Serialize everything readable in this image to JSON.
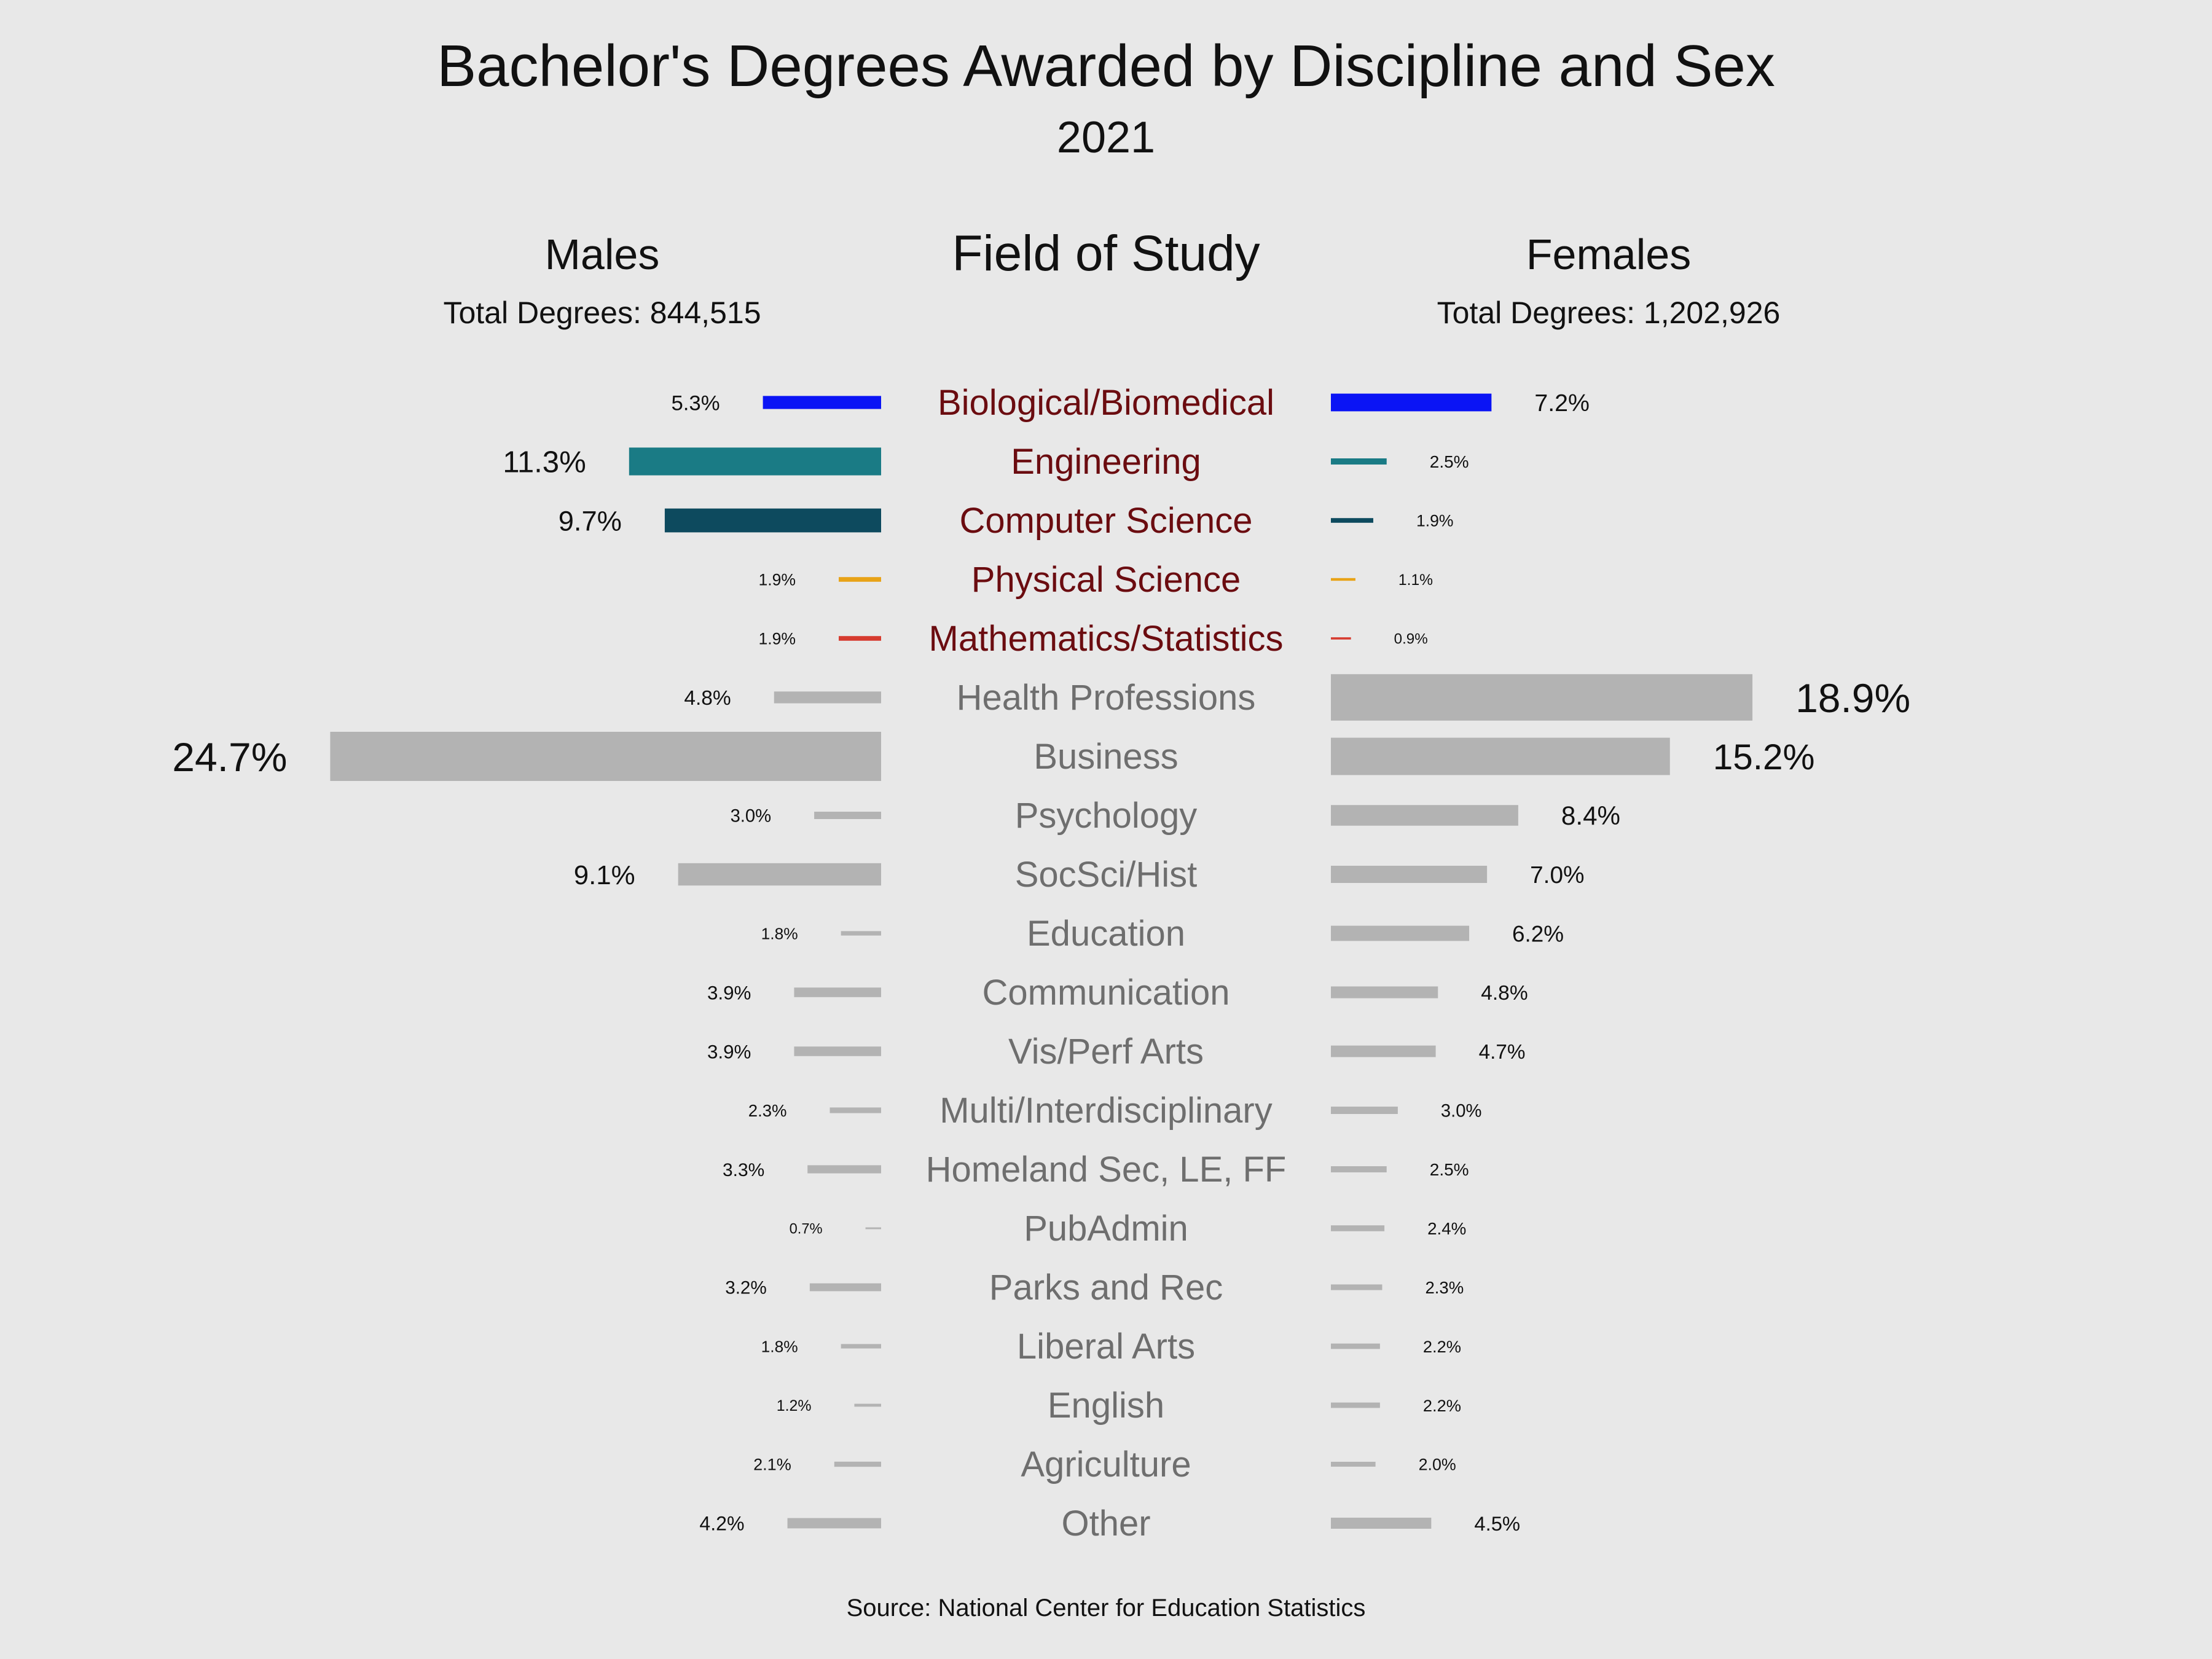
{
  "title": "Bachelor's Degrees Awarded by Discipline and Sex",
  "subtitle": "2021",
  "headers": {
    "males": "Males",
    "field": "Field of Study",
    "females": "Females"
  },
  "totals": {
    "males": "Total Degrees: 844,515",
    "females": "Total Degrees: 1,202,926"
  },
  "source": "Source: National Center for Education Statistics",
  "colors": {
    "background": "#e8e8e8",
    "highlight_label": "#6b0c10",
    "gray_label": "#6e6e6e",
    "gray_bar": "#b3b3b3",
    "value_text": "#111111"
  },
  "chart_data": {
    "type": "bar",
    "orientation": "horizontal-diverging",
    "series": [
      {
        "name": "Males",
        "values": [
          5.3,
          11.3,
          9.7,
          1.9,
          1.9,
          4.8,
          24.7,
          3.0,
          9.1,
          1.8,
          3.9,
          3.9,
          2.3,
          3.3,
          0.7,
          3.2,
          1.8,
          1.2,
          2.1,
          4.2
        ]
      },
      {
        "name": "Females",
        "values": [
          7.2,
          2.5,
          1.9,
          1.1,
          0.9,
          18.9,
          15.2,
          8.4,
          7.0,
          6.2,
          4.8,
          4.7,
          3.0,
          2.5,
          2.4,
          2.3,
          2.2,
          2.2,
          2.0,
          4.5
        ]
      }
    ],
    "categories": [
      "Biological/Biomedical",
      "Engineering",
      "Computer Science",
      "Physical Science",
      "Mathematics/Statistics",
      "Health Professions",
      "Business",
      "Psychology",
      "SocSci/Hist",
      "Education",
      "Communication",
      "Vis/Perf Arts",
      "Multi/Interdisciplinary",
      "Homeland Sec, LE, FF",
      "PubAdmin",
      "Parks and Rec",
      "Liberal Arts",
      "English",
      "Agriculture",
      "Other"
    ],
    "male_labels": [
      "5.3%",
      "11.3%",
      "9.7%",
      "1.9%",
      "1.9%",
      "4.8%",
      "24.7%",
      "3.0%",
      "9.1%",
      "1.8%",
      "3.9%",
      "3.9%",
      "2.3%",
      "3.3%",
      "0.7%",
      "3.2%",
      "1.8%",
      "1.2%",
      "2.1%",
      "4.2%"
    ],
    "female_labels": [
      "7.2%",
      "2.5%",
      "1.9%",
      "1.1%",
      "0.9%",
      "18.9%",
      "15.2%",
      "8.4%",
      "7.0%",
      "6.2%",
      "4.8%",
      "4.7%",
      "3.0%",
      "2.5%",
      "2.4%",
      "2.3%",
      "2.2%",
      "2.2%",
      "2.0%",
      "4.5%"
    ],
    "bar_colors": [
      "#0a14f5",
      "#1a7b85",
      "#0d4a5e",
      "#e8a317",
      "#d63b2f",
      "#b3b3b3",
      "#b3b3b3",
      "#b3b3b3",
      "#b3b3b3",
      "#b3b3b3",
      "#b3b3b3",
      "#b3b3b3",
      "#b3b3b3",
      "#b3b3b3",
      "#b3b3b3",
      "#b3b3b3",
      "#b3b3b3",
      "#b3b3b3",
      "#b3b3b3",
      "#b3b3b3"
    ],
    "highlighted_fields": [
      "Biological/Biomedical",
      "Engineering",
      "Computer Science",
      "Physical Science",
      "Mathematics/Statistics"
    ],
    "unit": "%",
    "grid": false,
    "legend": "none"
  }
}
